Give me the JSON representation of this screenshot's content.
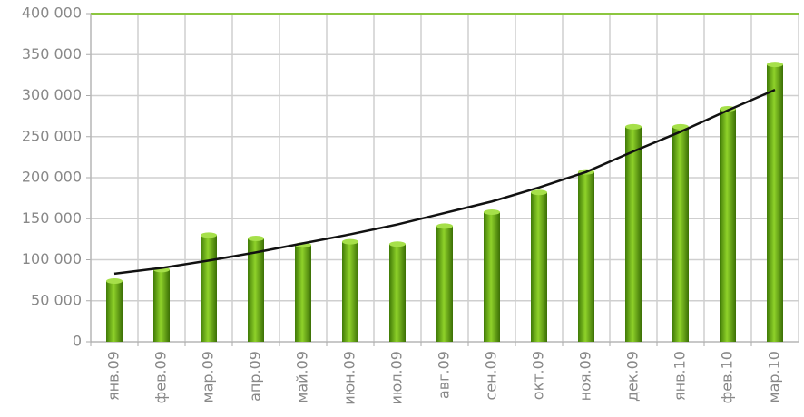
{
  "chart_data": {
    "type": "bar",
    "categories": [
      "янв.09",
      "фев.09",
      "мар.09",
      "апр.09",
      "май.09",
      "июн.09",
      "июл.09",
      "авг.09",
      "сен.09",
      "окт.09",
      "ноя.09",
      "дек.09",
      "янв.10",
      "фев.10",
      "мар.10"
    ],
    "values": [
      74000,
      88000,
      130000,
      126000,
      118000,
      122000,
      119000,
      141000,
      158000,
      182000,
      207000,
      262000,
      262000,
      284000,
      338000
    ],
    "color": "#5a9a12",
    "trend": {
      "color": "#111111",
      "values": [
        83000,
        90000,
        99000,
        109000,
        120000,
        131000,
        143000,
        157000,
        171000,
        188000,
        207000,
        232000,
        256000,
        282000,
        307000
      ]
    },
    "ylim": [
      0,
      400000
    ],
    "yticks": [
      0,
      {
        "value": 50000,
        "label": "50 000"
      },
      {
        "value": 100000,
        "label": "100 000"
      },
      {
        "value": 150000,
        "label": "150 000"
      },
      {
        "value": 200000,
        "label": "200 000"
      },
      {
        "value": 250000,
        "label": "250 000"
      },
      {
        "value": 300000,
        "label": "300 000"
      },
      {
        "value": 350000,
        "label": "350 000"
      },
      {
        "value": 400000,
        "label": "400 000"
      }
    ],
    "grid": true
  }
}
